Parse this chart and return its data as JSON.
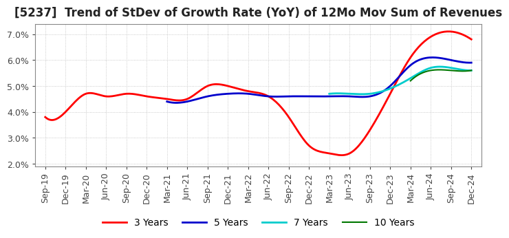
{
  "title": "[5237]  Trend of StDev of Growth Rate (YoY) of 12Mo Mov Sum of Revenues",
  "title_fontsize": 12,
  "ylim": [
    0.019,
    0.074
  ],
  "yticks": [
    0.02,
    0.03,
    0.04,
    0.05,
    0.06,
    0.07
  ],
  "x_labels": [
    "Sep-19",
    "Dec-19",
    "Mar-20",
    "Jun-20",
    "Sep-20",
    "Dec-20",
    "Mar-21",
    "Jun-21",
    "Sep-21",
    "Dec-21",
    "Mar-22",
    "Jun-22",
    "Sep-22",
    "Dec-22",
    "Mar-23",
    "Jun-23",
    "Sep-23",
    "Dec-23",
    "Mar-24",
    "Jun-24",
    "Sep-24",
    "Dec-24"
  ],
  "y_3yr": [
    0.038,
    0.04,
    0.047,
    0.046,
    0.047,
    0.046,
    0.045,
    0.045,
    0.05,
    0.05,
    0.048,
    0.046,
    0.038,
    0.027,
    0.024,
    0.024,
    0.033,
    0.047,
    0.061,
    0.069,
    0.071,
    0.068
  ],
  "y_5yr": [
    null,
    null,
    null,
    null,
    null,
    null,
    0.044,
    0.044,
    0.046,
    0.047,
    0.047,
    0.046,
    0.046,
    0.046,
    0.046,
    0.046,
    0.046,
    0.05,
    0.058,
    0.061,
    0.06,
    0.059
  ],
  "y_7yr": [
    null,
    null,
    null,
    null,
    null,
    null,
    null,
    null,
    null,
    null,
    null,
    null,
    null,
    null,
    0.047,
    0.047,
    0.047,
    0.049,
    0.053,
    0.057,
    0.057,
    0.056
  ],
  "y_10yr": [
    null,
    null,
    null,
    null,
    null,
    null,
    null,
    null,
    null,
    null,
    null,
    null,
    null,
    null,
    null,
    null,
    null,
    null,
    0.052,
    0.056,
    0.056,
    0.056
  ],
  "color_3yr": "#ff0000",
  "color_5yr": "#0000cc",
  "color_7yr": "#00cccc",
  "color_10yr": "#007700",
  "background_color": "#ffffff",
  "grid_color": "#bbbbbb",
  "box_color": "#888888"
}
